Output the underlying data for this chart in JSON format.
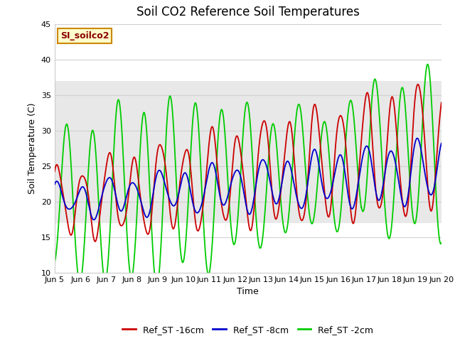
{
  "title": "Soil CO2 Reference Soil Temperatures",
  "xlabel": "Time",
  "ylabel": "Soil Temperature (C)",
  "ylim": [
    10,
    45
  ],
  "xlim_start": 5,
  "xlim_end": 20,
  "xtick_positions": [
    5,
    6,
    7,
    8,
    9,
    10,
    11,
    12,
    13,
    14,
    15,
    16,
    17,
    18,
    19,
    20
  ],
  "xtick_labels": [
    "Jun 5",
    "Jun 6",
    "Jun 7",
    "Jun 8",
    "Jun 9",
    "Jun 10",
    "Jun 11",
    "Jun 12",
    "Jun 13",
    "Jun 14",
    "Jun 15",
    "Jun 16",
    "Jun 17",
    "Jun 18",
    "Jun 19",
    "Jun 20"
  ],
  "ytick_positions": [
    10,
    15,
    20,
    25,
    30,
    35,
    40,
    45
  ],
  "color_red": "#cc0000",
  "color_blue": "#0000cc",
  "color_green": "#00cc00",
  "legend_labels": [
    "Ref_ST -16cm",
    "Ref_ST -8cm",
    "Ref_ST -2cm"
  ],
  "label_box_text": "SI_soilco2",
  "label_box_facecolor": "#ffffcc",
  "label_box_edgecolor": "#cc8800",
  "shaded_band_low": 17,
  "shaded_band_high": 37,
  "shaded_band_color": "#e8e8e8",
  "background_color": "#ffffff",
  "grid_color": "#d0d0d0",
  "title_fontsize": 12,
  "axis_fontsize": 9,
  "tick_fontsize": 8,
  "legend_fontsize": 9,
  "linewidth": 1.3
}
